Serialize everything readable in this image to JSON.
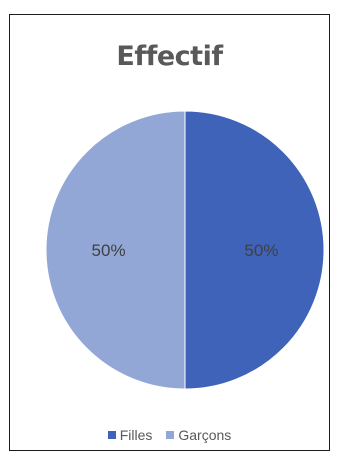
{
  "chart_data": {
    "type": "pie",
    "title": "Effectif",
    "categories": [
      "Filles",
      "Garçons"
    ],
    "values": [
      50,
      50
    ],
    "data_labels": [
      "50%",
      "50%"
    ],
    "colors": [
      "#3f63b8",
      "#93a7d7"
    ],
    "legend": {
      "position": "bottom",
      "entries": [
        "Filles",
        "Garçons"
      ]
    }
  }
}
